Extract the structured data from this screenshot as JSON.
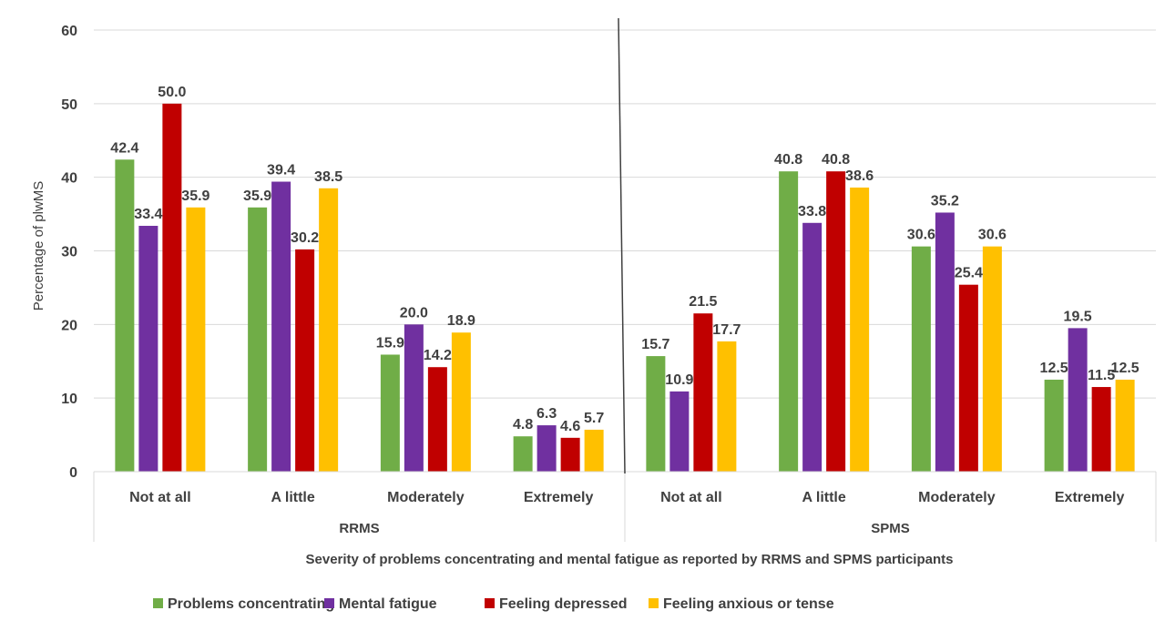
{
  "chart_data": {
    "type": "bar",
    "ylabel": "Percentage of plwMS",
    "xlabel": "Severity of problems concentrating and mental fatigue as reported by RRMS and SPMS participants",
    "ylim": [
      0,
      60
    ],
    "yticks": [
      "0",
      "10",
      "20",
      "30",
      "40",
      "50",
      "60"
    ],
    "grid": true,
    "legend_position": "bottom",
    "groups": [
      {
        "name": "RRMS",
        "categories": [
          "Not at all",
          "A little",
          "Moderately",
          "Extremely"
        ],
        "series": [
          {
            "name": "Problems concentrating",
            "values": [
              42.4,
              35.9,
              15.9,
              4.8
            ],
            "labels": [
              "42.4",
              "35.9",
              "15.9",
              "4.8"
            ]
          },
          {
            "name": "Mental fatigue",
            "values": [
              33.4,
              39.4,
              20.0,
              6.3
            ],
            "labels": [
              "33.4",
              "39.4",
              "20.0",
              "6.3"
            ]
          },
          {
            "name": "Feeling depressed",
            "values": [
              50.0,
              30.2,
              14.2,
              4.6
            ],
            "labels": [
              "50.0",
              "30.2",
              "14.2",
              "4.6"
            ]
          },
          {
            "name": "Feeling anxious or tense",
            "values": [
              35.9,
              38.5,
              18.9,
              5.7
            ],
            "labels": [
              "35.9",
              "38.5",
              "18.9",
              "5.7"
            ]
          }
        ]
      },
      {
        "name": "SPMS",
        "categories": [
          "Not at all",
          "A little",
          "Moderately",
          "Extremely"
        ],
        "series": [
          {
            "name": "Problems concentrating",
            "values": [
              15.7,
              40.8,
              30.6,
              12.5
            ],
            "labels": [
              "15.7",
              "40.8",
              "30.6",
              "12.5"
            ]
          },
          {
            "name": "Mental fatigue",
            "values": [
              10.9,
              33.8,
              35.2,
              19.5
            ],
            "labels": [
              "10.9",
              "33.8",
              "35.2",
              "19.5"
            ]
          },
          {
            "name": "Feeling depressed",
            "values": [
              21.5,
              40.8,
              25.4,
              11.5
            ],
            "labels": [
              "21.5",
              "40.8",
              "25.4",
              "11.5"
            ]
          },
          {
            "name": "Feeling anxious or tense",
            "values": [
              17.7,
              38.6,
              30.6,
              12.5
            ],
            "labels": [
              "17.7",
              "38.6",
              "30.6",
              "12.5"
            ]
          }
        ]
      }
    ],
    "legend": [
      "Problems concentrating",
      "Mental fatigue",
      "Feeling depressed",
      "Feeling anxious or tense"
    ],
    "colors": [
      "#70ad47",
      "#7030a0",
      "#c00000",
      "#ffc000"
    ]
  }
}
